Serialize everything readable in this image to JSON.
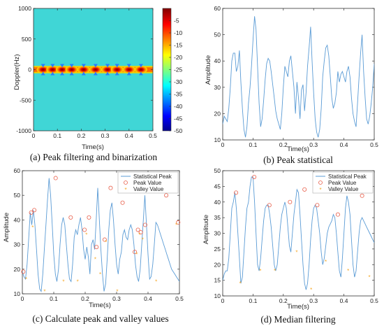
{
  "colors": {
    "line": "#5a9bd5",
    "peak": "#e8604c",
    "valley": "#f5a623",
    "heat_bg": "#40d6d6"
  },
  "chart_data": [
    {
      "type": "heatmap",
      "caption": "(a) Peak filtering and binarization",
      "xlabel": "Time(s)",
      "ylabel": "Doppler(Hz)",
      "xlim": [
        0,
        0.5
      ],
      "ylim": [
        -1000,
        1000
      ],
      "xticks": [
        "0",
        "0.1",
        "0.2",
        "0.3",
        "0.4",
        "0.5"
      ],
      "yticks": [
        "1000",
        "500",
        "0",
        "-500",
        "-1000"
      ],
      "colorbar": {
        "range": [
          -50,
          0
        ],
        "ticks": [
          "-5",
          "-10",
          "-15",
          "-20",
          "-25",
          "-30",
          "-35",
          "-40",
          "-45",
          "-50"
        ]
      },
      "background_level": -30,
      "band": {
        "center": 0,
        "half_width": 60
      },
      "hotspots": [
        0.04,
        0.08,
        0.12,
        0.16,
        0.21,
        0.26,
        0.31,
        0.35,
        0.4,
        0.45
      ]
    },
    {
      "type": "line",
      "caption": "(b) Peak statistical",
      "xlabel": "Time(s)",
      "ylabel": "Amplitude",
      "xlim": [
        0,
        0.5
      ],
      "ylim": [
        10,
        60
      ],
      "xticks": [
        "0",
        "0.1",
        "0.2",
        "0.3",
        "0.4",
        "0.5"
      ],
      "yticks": [
        "60",
        "50",
        "40",
        "30",
        "20",
        "10"
      ],
      "x": [
        0,
        0.005,
        0.01,
        0.015,
        0.02,
        0.025,
        0.03,
        0.035,
        0.04,
        0.045,
        0.05,
        0.055,
        0.06,
        0.065,
        0.07,
        0.075,
        0.08,
        0.085,
        0.09,
        0.095,
        0.1,
        0.105,
        0.11,
        0.115,
        0.12,
        0.125,
        0.13,
        0.135,
        0.14,
        0.145,
        0.15,
        0.155,
        0.16,
        0.165,
        0.17,
        0.175,
        0.18,
        0.185,
        0.19,
        0.195,
        0.2,
        0.205,
        0.21,
        0.215,
        0.22,
        0.225,
        0.23,
        0.235,
        0.24,
        0.245,
        0.25,
        0.255,
        0.26,
        0.265,
        0.27,
        0.275,
        0.28,
        0.285,
        0.29,
        0.295,
        0.3,
        0.305,
        0.31,
        0.315,
        0.32,
        0.325,
        0.33,
        0.335,
        0.34,
        0.345,
        0.35,
        0.355,
        0.36,
        0.365,
        0.37,
        0.375,
        0.38,
        0.385,
        0.39,
        0.395,
        0.4,
        0.405,
        0.41,
        0.415,
        0.42,
        0.425,
        0.43,
        0.435,
        0.44,
        0.445,
        0.45,
        0.455,
        0.46,
        0.465,
        0.47,
        0.475,
        0.48,
        0.485,
        0.49,
        0.495,
        0.5
      ],
      "y": [
        16,
        19,
        18,
        17,
        22,
        30,
        40,
        43,
        43,
        36,
        38,
        44,
        32,
        22,
        14,
        11,
        15,
        24,
        30,
        38,
        48,
        57,
        52,
        38,
        24,
        15,
        18,
        25,
        33,
        39,
        41,
        40,
        36,
        31,
        26,
        21,
        18,
        16,
        14,
        20,
        30,
        38,
        36,
        34,
        40,
        42,
        36,
        30,
        20,
        32,
        26,
        18,
        29,
        31,
        21,
        28,
        38,
        45,
        53,
        40,
        28,
        18,
        13,
        11,
        14,
        22,
        34,
        40,
        45,
        46,
        42,
        34,
        26,
        22,
        24,
        28,
        36,
        32,
        35,
        36,
        34,
        32,
        36,
        38,
        34,
        26,
        20,
        17,
        15,
        24,
        34,
        43,
        50,
        36,
        26,
        18,
        16,
        19,
        24,
        30,
        39
      ]
    },
    {
      "type": "line",
      "caption": "(c) Calculate peak and valley values",
      "xlabel": "Time(s)",
      "ylabel": "Amplitude",
      "xlim": [
        0,
        0.5
      ],
      "ylim": [
        10,
        60
      ],
      "xticks": [
        "0",
        "0.1",
        "0.2",
        "0.3",
        "0.4",
        "0.5"
      ],
      "yticks": [
        "60",
        "50",
        "40",
        "30",
        "20",
        "10"
      ],
      "legend": {
        "position": "top-right",
        "entries": [
          "Statistical Peak",
          "Peak Value",
          "Valley Value"
        ]
      },
      "x": [
        0,
        0.005,
        0.01,
        0.015,
        0.02,
        0.025,
        0.03,
        0.035,
        0.04,
        0.045,
        0.05,
        0.055,
        0.06,
        0.065,
        0.07,
        0.075,
        0.08,
        0.085,
        0.09,
        0.095,
        0.1,
        0.105,
        0.11,
        0.115,
        0.12,
        0.125,
        0.13,
        0.135,
        0.14,
        0.145,
        0.15,
        0.155,
        0.16,
        0.165,
        0.17,
        0.175,
        0.18,
        0.185,
        0.19,
        0.195,
        0.2,
        0.205,
        0.21,
        0.215,
        0.22,
        0.225,
        0.23,
        0.235,
        0.24,
        0.245,
        0.25,
        0.255,
        0.26,
        0.265,
        0.27,
        0.275,
        0.28,
        0.285,
        0.29,
        0.295,
        0.3,
        0.305,
        0.31,
        0.315,
        0.32,
        0.325,
        0.33,
        0.335,
        0.34,
        0.345,
        0.35,
        0.355,
        0.36,
        0.365,
        0.37,
        0.375,
        0.38,
        0.385,
        0.39,
        0.395,
        0.4,
        0.405,
        0.41,
        0.415,
        0.42,
        0.425,
        0.43,
        0.435,
        0.44,
        0.445,
        0.45,
        0.455,
        0.46,
        0.465,
        0.47,
        0.475,
        0.48,
        0.485,
        0.49,
        0.495,
        0.5
      ],
      "y": [
        19,
        17,
        16,
        22,
        32,
        43,
        38,
        44,
        38,
        28,
        18,
        12,
        11,
        18,
        28,
        38,
        48,
        57,
        50,
        38,
        26,
        18,
        15,
        20,
        30,
        38,
        41,
        38,
        30,
        22,
        16,
        15,
        22,
        33,
        36,
        34,
        38,
        41,
        36,
        28,
        24,
        29,
        25,
        18,
        30,
        32,
        28,
        40,
        53,
        40,
        28,
        18,
        11,
        14,
        24,
        36,
        44,
        47,
        40,
        30,
        22,
        18,
        24,
        27,
        34,
        36,
        33,
        32,
        36,
        38,
        36,
        30,
        22,
        17,
        15,
        20,
        30,
        40,
        50,
        38,
        26,
        16,
        17,
        22,
        30,
        39,
        38,
        36,
        34,
        32,
        30,
        28,
        26,
        24,
        22,
        20,
        19,
        18,
        17,
        16,
        15
      ],
      "peaks": [
        [
          0.003,
          19
        ],
        [
          0.028,
          43
        ],
        [
          0.038,
          44
        ],
        [
          0.106,
          57
        ],
        [
          0.154,
          41
        ],
        [
          0.198,
          36
        ],
        [
          0.212,
          41
        ],
        [
          0.236,
          29
        ],
        [
          0.262,
          32
        ],
        [
          0.281,
          53
        ],
        [
          0.319,
          47
        ],
        [
          0.358,
          27
        ],
        [
          0.368,
          36
        ],
        [
          0.377,
          35
        ],
        [
          0.391,
          38
        ],
        [
          0.458,
          50
        ],
        [
          0.496,
          39
        ]
      ],
      "valleys": [
        [
          0.012,
          16
        ],
        [
          0.033,
          37
        ],
        [
          0.071,
          11
        ],
        [
          0.131,
          15
        ],
        [
          0.176,
          15
        ],
        [
          0.204,
          34
        ],
        [
          0.232,
          24
        ],
        [
          0.248,
          18
        ],
        [
          0.266,
          31
        ],
        [
          0.302,
          11
        ],
        [
          0.364,
          26
        ],
        [
          0.373,
          34
        ],
        [
          0.383,
          32
        ],
        [
          0.426,
          15
        ],
        [
          0.49,
          38
        ]
      ]
    },
    {
      "type": "line",
      "caption": "(d) Median filtering",
      "xlabel": "Time(s)",
      "ylabel": "Amplitude",
      "xlim": [
        0,
        0.5
      ],
      "ylim": [
        10,
        50
      ],
      "xticks": [
        "0",
        "0.1",
        "0.2",
        "0.3",
        "0.4",
        "0.5"
      ],
      "yticks": [
        "50",
        "45",
        "40",
        "35",
        "30",
        "25",
        "20",
        "15",
        "10"
      ],
      "legend": {
        "position": "top-right",
        "entries": [
          "Statistical Peak",
          "Peak Value",
          "Valley Value"
        ]
      },
      "x": [
        0,
        0.005,
        0.01,
        0.015,
        0.02,
        0.025,
        0.03,
        0.035,
        0.04,
        0.045,
        0.05,
        0.055,
        0.06,
        0.065,
        0.07,
        0.075,
        0.08,
        0.085,
        0.09,
        0.095,
        0.1,
        0.105,
        0.11,
        0.115,
        0.12,
        0.125,
        0.13,
        0.135,
        0.14,
        0.145,
        0.15,
        0.155,
        0.16,
        0.165,
        0.17,
        0.175,
        0.18,
        0.185,
        0.19,
        0.195,
        0.2,
        0.205,
        0.21,
        0.215,
        0.22,
        0.225,
        0.23,
        0.235,
        0.24,
        0.245,
        0.25,
        0.255,
        0.26,
        0.265,
        0.27,
        0.275,
        0.28,
        0.285,
        0.29,
        0.295,
        0.3,
        0.305,
        0.31,
        0.315,
        0.32,
        0.325,
        0.33,
        0.335,
        0.34,
        0.345,
        0.35,
        0.355,
        0.36,
        0.365,
        0.37,
        0.375,
        0.38,
        0.385,
        0.39,
        0.395,
        0.4,
        0.405,
        0.41,
        0.415,
        0.42,
        0.425,
        0.43,
        0.435,
        0.44,
        0.445,
        0.45,
        0.455,
        0.46,
        0.465,
        0.47,
        0.475,
        0.48,
        0.485,
        0.49,
        0.495,
        0.5
      ],
      "y": [
        15,
        17,
        18,
        18,
        22,
        30,
        38,
        40,
        43,
        38,
        30,
        22,
        14,
        16,
        24,
        32,
        38,
        40,
        45,
        48,
        48,
        40,
        30,
        20,
        18,
        22,
        28,
        34,
        38,
        39,
        39,
        36,
        32,
        26,
        20,
        18,
        20,
        26,
        32,
        36,
        38,
        40,
        38,
        32,
        26,
        24,
        30,
        36,
        40,
        44,
        43,
        36,
        28,
        20,
        14,
        12,
        14,
        20,
        28,
        34,
        38,
        39,
        38,
        34,
        30,
        24,
        20,
        22,
        26,
        30,
        32,
        33,
        34,
        36,
        35,
        30,
        24,
        18,
        16,
        22,
        30,
        38,
        42,
        40,
        36,
        28,
        20,
        16,
        18,
        24,
        30,
        34,
        35,
        34,
        33,
        32,
        31,
        30,
        29,
        28,
        27
      ],
      "peaks": [
        [
          0.044,
          43
        ],
        [
          0.104,
          48
        ],
        [
          0.154,
          39
        ],
        [
          0.222,
          40
        ],
        [
          0.27,
          44
        ],
        [
          0.312,
          39
        ],
        [
          0.38,
          36
        ],
        [
          0.46,
          42
        ]
      ],
      "valleys": [
        [
          0.058,
          14
        ],
        [
          0.124,
          18
        ],
        [
          0.172,
          18
        ],
        [
          0.244,
          24
        ],
        [
          0.292,
          12
        ],
        [
          0.34,
          21
        ],
        [
          0.414,
          18
        ],
        [
          0.484,
          16
        ]
      ]
    }
  ]
}
